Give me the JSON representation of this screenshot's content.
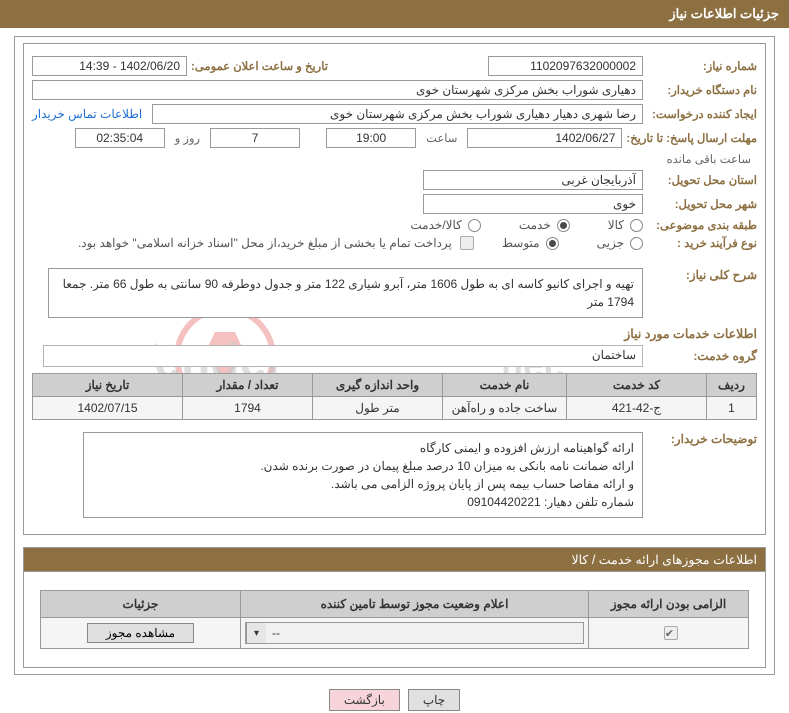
{
  "colors": {
    "brand": "#8d7042",
    "border": "#9a9a9a",
    "th_bg": "#cfcfcf",
    "td_bg": "#f5f5f5",
    "link": "#1e6fd6",
    "btn_pink": "#f6d4d9",
    "btn_gray": "#e0e0e0"
  },
  "header": {
    "title": "جزئیات اطلاعات نیاز"
  },
  "upper": {
    "need_no_label": "شماره نیاز:",
    "need_no": "1102097632000002",
    "announce_label": "تاریخ و ساعت اعلان عمومی:",
    "announce_value": "1402/06/20 - 14:39",
    "buyer_org_label": "نام دستگاه خریدار:",
    "buyer_org": "دهیاری شوراب بخش مرکزی شهرستان خوی",
    "requester_label": "ایجاد کننده درخواست:",
    "requester": "رضا شهری دهیار دهیاری شوراب بخش مرکزی شهرستان خوی",
    "contact_link": "اطلاعات تماس خریدار",
    "deadline_label": "مهلت ارسال پاسخ: تا تاریخ:",
    "deadline_date": "1402/06/27",
    "time_label": "ساعت",
    "deadline_time": "19:00",
    "days_value": "7",
    "days_label": "روز و",
    "remaining_time": "02:35:04",
    "remaining_label": "ساعت باقی مانده",
    "province_label": "استان محل تحویل:",
    "province": "آذربایجان غربی",
    "city_label": "شهر محل تحویل:",
    "city": "خوی",
    "category_label": "طبقه بندی موضوعی:",
    "cat_goods": "کالا",
    "cat_service": "خدمت",
    "cat_both": "کالا/خدمت",
    "category_selected": "service",
    "process_label": "نوع فرآیند خرید :",
    "proc_minor": "جزیی",
    "proc_medium": "متوسط",
    "process_selected": "medium",
    "payment_note": "پرداخت تمام یا بخشی از مبلغ خرید،از محل \"اسناد خزانه اسلامی\" خواهد بود.",
    "payment_checked": false,
    "desc_label": "شرح کلی نیاز:",
    "desc_text": "تهیه و اجرای کانیو کاسه ای به طول 1606 متر، آبرو شیاری 122 متر و جدول دوطرفه 90 سانتی به طول 66 متر. جمعا 1794 متر",
    "svc_section_title": "اطلاعات خدمات مورد نیاز",
    "svc_group_label": "گروه خدمت:",
    "svc_group": "ساختمان",
    "table": {
      "columns": [
        "ردیف",
        "کد خدمت",
        "نام خدمت",
        "واحد اندازه گیری",
        "تعداد / مقدار",
        "تاریخ نیاز"
      ],
      "rows": [
        [
          "1",
          "ج-42-421",
          "ساخت جاده و راه‌آهن",
          "متر طول",
          "1794",
          "1402/07/15"
        ]
      ],
      "col_widths": [
        "50px",
        "140px",
        "auto",
        "130px",
        "130px",
        "150px"
      ]
    },
    "notes_label": "توضیحات خریدار:",
    "notes_lines": [
      "ارائه گواهینامه ارزش افزوده و ایمنی کارگاه",
      "ارائه ضمانت نامه بانکی به میزان 10 درصد مبلغ پیمان در صورت برنده شدن.",
      "و ارائه مفاصا حساب بیمه پس از پایان پروژه الزامی می باشد.",
      "شماره تلفن دهیار: 09104420221"
    ]
  },
  "permit": {
    "bar_title": "اطلاعات مجوزهای ارائه خدمت / کالا",
    "columns": [
      "الزامی بودن ارائه مجوز",
      "اعلام وضعیت مجوز توسط تامین کننده",
      "جزئیات"
    ],
    "mandatory_checked": true,
    "dropdown_value": "--",
    "view_btn": "مشاهده مجوز",
    "col_widths": [
      "160px",
      "auto",
      "200px"
    ]
  },
  "buttons": {
    "print": "چاپ",
    "back": "بازگشت"
  },
  "watermark_text": "AriaTender.net",
  "watermark_colors": {
    "ring": "#e14b4b",
    "text": "#c9c9c9"
  }
}
